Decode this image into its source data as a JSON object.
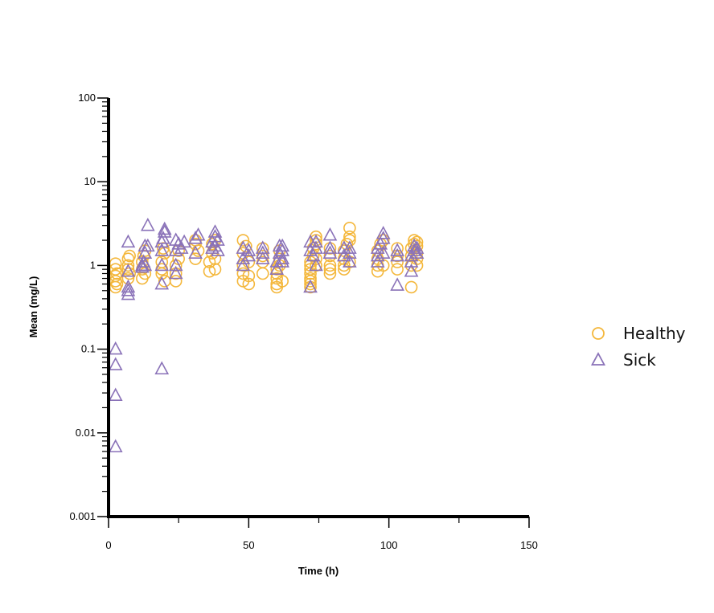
{
  "chart_data": {
    "type": "scatter",
    "title": "",
    "xlabel": "Time (h)",
    "ylabel": "Mean (mg/L)",
    "xlim": [
      0,
      150
    ],
    "ylim": [
      0.001,
      100
    ],
    "yscale": "log",
    "x_ticks": [
      0,
      50,
      100,
      150
    ],
    "x_tick_labels": [
      "0",
      "50",
      "100",
      "150"
    ],
    "y_ticks": [
      0.001,
      0.01,
      0.1,
      1,
      10,
      100
    ],
    "y_tick_labels": [
      "0.001",
      "0.01",
      "0.1",
      "1",
      "10",
      "100"
    ],
    "grid": false,
    "legend_position": "right",
    "series": [
      {
        "name": "Healthy",
        "marker": "circle",
        "color": "#f4b73b",
        "points": [
          [
            2.5,
            0.55
          ],
          [
            2.5,
            0.65
          ],
          [
            2.5,
            0.75
          ],
          [
            2.5,
            0.9
          ],
          [
            2.5,
            1.05
          ],
          [
            3,
            0.8
          ],
          [
            3,
            0.6
          ],
          [
            7,
            0.7
          ],
          [
            7,
            0.9
          ],
          [
            7,
            1.0
          ],
          [
            7,
            1.2
          ],
          [
            7.5,
            1.3
          ],
          [
            7.5,
            0.8
          ],
          [
            12,
            0.7
          ],
          [
            12,
            0.9
          ],
          [
            12,
            1.1
          ],
          [
            12.5,
            1.3
          ],
          [
            13,
            1.5
          ],
          [
            13,
            0.8
          ],
          [
            19,
            0.8
          ],
          [
            19,
            0.9
          ],
          [
            19,
            1.1
          ],
          [
            19.5,
            1.6
          ],
          [
            20,
            1.4
          ],
          [
            20,
            0.65
          ],
          [
            24,
            0.65
          ],
          [
            24,
            0.8
          ],
          [
            24,
            1.0
          ],
          [
            25,
            1.2
          ],
          [
            25,
            1.5
          ],
          [
            31,
            1.2
          ],
          [
            31,
            1.8
          ],
          [
            31,
            2.0
          ],
          [
            32,
            1.5
          ],
          [
            36,
            0.85
          ],
          [
            36,
            1.1
          ],
          [
            37,
            1.4
          ],
          [
            37,
            1.8
          ],
          [
            38,
            2.0
          ],
          [
            38,
            0.9
          ],
          [
            38,
            1.2
          ],
          [
            48,
            0.65
          ],
          [
            48,
            0.8
          ],
          [
            48,
            1.0
          ],
          [
            48,
            1.4
          ],
          [
            48,
            2.0
          ],
          [
            49,
            1.7
          ],
          [
            50,
            0.6
          ],
          [
            50,
            0.75
          ],
          [
            50,
            1.1
          ],
          [
            55,
            0.8
          ],
          [
            55,
            1.1
          ],
          [
            55,
            1.3
          ],
          [
            55,
            1.6
          ],
          [
            60,
            0.55
          ],
          [
            60,
            0.6
          ],
          [
            60,
            0.7
          ],
          [
            60,
            0.8
          ],
          [
            60,
            0.9
          ],
          [
            61,
            1.0
          ],
          [
            61,
            1.2
          ],
          [
            61,
            1.5
          ],
          [
            62,
            0.65
          ],
          [
            72,
            0.55
          ],
          [
            72,
            0.6
          ],
          [
            72,
            0.65
          ],
          [
            72,
            0.7
          ],
          [
            72,
            0.8
          ],
          [
            72,
            0.9
          ],
          [
            72,
            1.0
          ],
          [
            72,
            1.1
          ],
          [
            73,
            1.3
          ],
          [
            73,
            1.6
          ],
          [
            74,
            1.8
          ],
          [
            74,
            2.0
          ],
          [
            74,
            2.2
          ],
          [
            74,
            1.0
          ],
          [
            74,
            1.2
          ],
          [
            79,
            0.8
          ],
          [
            79,
            0.9
          ],
          [
            79,
            1.0
          ],
          [
            79,
            1.3
          ],
          [
            79,
            1.6
          ],
          [
            84,
            0.9
          ],
          [
            84,
            1.0
          ],
          [
            84,
            1.2
          ],
          [
            84,
            1.5
          ],
          [
            85,
            1.8
          ],
          [
            86,
            2.0
          ],
          [
            86,
            2.2
          ],
          [
            86,
            2.8
          ],
          [
            86,
            1.1
          ],
          [
            96,
            0.85
          ],
          [
            96,
            1.0
          ],
          [
            96,
            1.2
          ],
          [
            96,
            1.5
          ],
          [
            97,
            1.8
          ],
          [
            98,
            2.0
          ],
          [
            98,
            1.0
          ],
          [
            103,
            0.9
          ],
          [
            103,
            1.1
          ],
          [
            103,
            1.3
          ],
          [
            103,
            1.6
          ],
          [
            108,
            0.55
          ],
          [
            108,
            1.0
          ],
          [
            108,
            1.3
          ],
          [
            108,
            1.6
          ],
          [
            109,
            1.8
          ],
          [
            109,
            2.0
          ],
          [
            110,
            1.0
          ],
          [
            110,
            1.2
          ],
          [
            110,
            1.4
          ],
          [
            110,
            1.7
          ],
          [
            110,
            1.9
          ]
        ]
      },
      {
        "name": "Sick",
        "marker": "triangle",
        "color": "#8a72b8",
        "points": [
          [
            2.5,
            0.1
          ],
          [
            2.5,
            0.065
          ],
          [
            2.5,
            0.028
          ],
          [
            2.5,
            0.0068
          ],
          [
            7,
            0.45
          ],
          [
            7,
            0.5
          ],
          [
            7,
            0.55
          ],
          [
            7,
            0.85
          ],
          [
            7,
            1.9
          ],
          [
            12,
            0.95
          ],
          [
            12,
            1.0
          ],
          [
            12.5,
            1.1
          ],
          [
            13,
            1.7
          ],
          [
            13,
            1.4
          ],
          [
            13,
            1.0
          ],
          [
            14,
            3.0
          ],
          [
            14,
            1.7
          ],
          [
            19,
            0.6
          ],
          [
            19,
            1.0
          ],
          [
            19,
            1.5
          ],
          [
            19,
            1.9
          ],
          [
            19.5,
            2.1
          ],
          [
            20,
            2.5
          ],
          [
            20,
            2.7
          ],
          [
            19,
            0.058
          ],
          [
            24,
            0.8
          ],
          [
            24,
            1.0
          ],
          [
            24,
            1.5
          ],
          [
            24,
            2.0
          ],
          [
            25,
            1.8
          ],
          [
            26,
            1.6
          ],
          [
            27,
            1.9
          ],
          [
            31,
            1.4
          ],
          [
            31,
            2.1
          ],
          [
            32,
            2.3
          ],
          [
            37,
            1.6
          ],
          [
            37,
            1.9
          ],
          [
            38,
            2.2
          ],
          [
            38,
            2.5
          ],
          [
            38,
            1.7
          ],
          [
            39,
            1.5
          ],
          [
            39,
            2.0
          ],
          [
            48,
            1.0
          ],
          [
            48,
            1.2
          ],
          [
            48,
            1.6
          ],
          [
            50,
            1.5
          ],
          [
            50,
            1.3
          ],
          [
            55,
            1.2
          ],
          [
            55,
            1.4
          ],
          [
            55,
            1.6
          ],
          [
            60,
            0.9
          ],
          [
            60,
            1.1
          ],
          [
            61,
            1.4
          ],
          [
            61,
            1.7
          ],
          [
            62,
            1.5
          ],
          [
            62,
            1.2
          ],
          [
            62,
            1.1
          ],
          [
            62,
            1.7
          ],
          [
            72,
            0.55
          ],
          [
            72,
            1.5
          ],
          [
            72,
            1.9
          ],
          [
            73,
            1.3
          ],
          [
            74,
            1.0
          ],
          [
            74,
            1.6
          ],
          [
            74,
            1.9
          ],
          [
            79,
            1.4
          ],
          [
            79,
            1.6
          ],
          [
            79,
            2.3
          ],
          [
            84,
            1.3
          ],
          [
            84,
            1.6
          ],
          [
            86,
            1.1
          ],
          [
            86,
            1.4
          ],
          [
            86,
            1.6
          ],
          [
            96,
            1.1
          ],
          [
            96,
            1.3
          ],
          [
            96,
            1.6
          ],
          [
            97,
            1.8
          ],
          [
            98,
            2.1
          ],
          [
            98,
            2.4
          ],
          [
            98,
            1.4
          ],
          [
            103,
            0.58
          ],
          [
            103,
            1.3
          ],
          [
            103,
            1.5
          ],
          [
            108,
            0.85
          ],
          [
            108,
            1.1
          ],
          [
            108,
            1.3
          ],
          [
            109,
            1.5
          ],
          [
            109,
            1.7
          ],
          [
            110,
            1.4
          ],
          [
            110,
            1.6
          ]
        ]
      }
    ]
  }
}
